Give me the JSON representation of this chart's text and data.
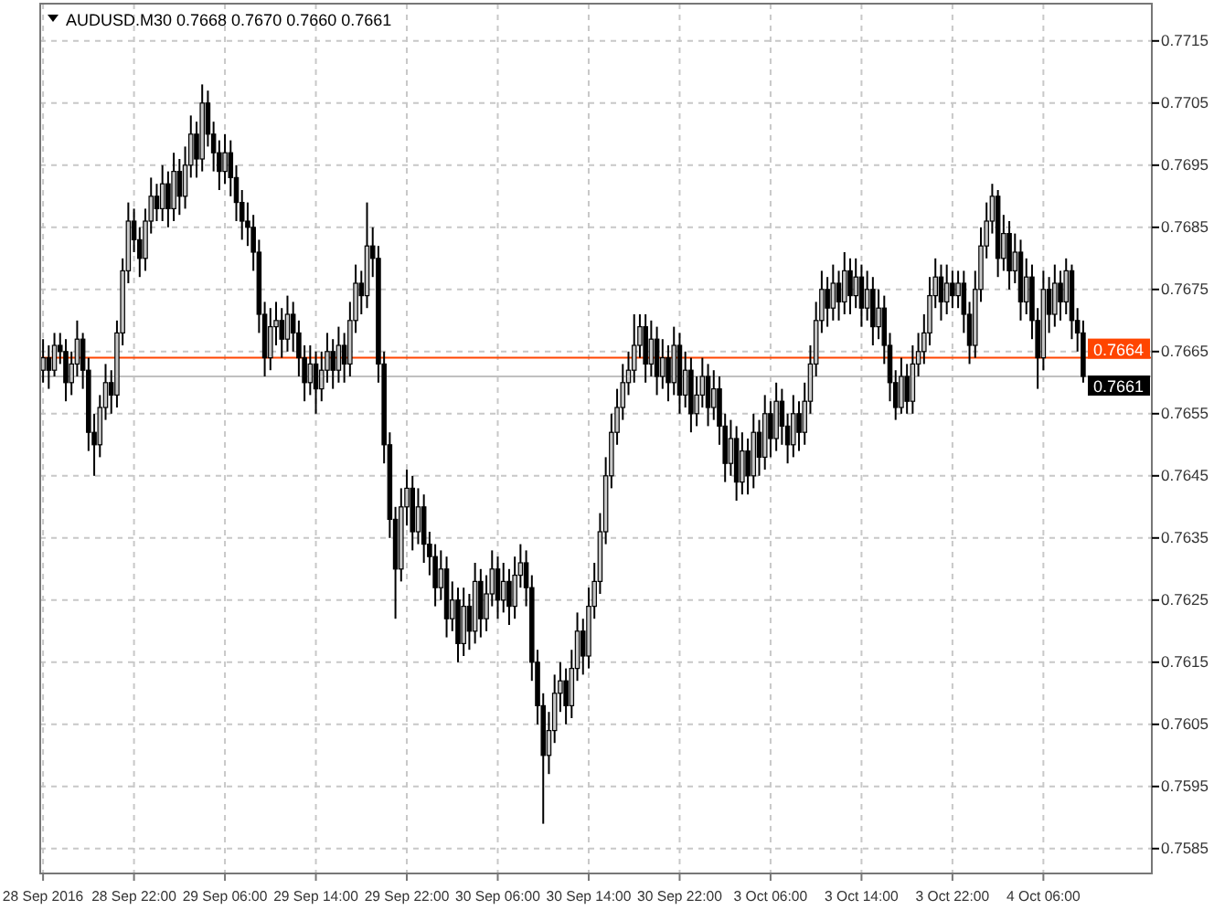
{
  "chart_data": {
    "type": "candlestick",
    "title": "AUDUSD.M30 0.7668 0.7670 0.7660 0.7661",
    "categories": [
      "28 Sep 2016",
      null,
      null,
      null,
      null,
      null,
      null,
      null,
      null,
      null,
      null,
      null,
      null,
      null,
      null,
      null,
      "28 Sep 22:00",
      null,
      null,
      null,
      null,
      null,
      null,
      null,
      null,
      null,
      null,
      null,
      null,
      null,
      null,
      null,
      "29 Sep 06:00",
      null,
      null,
      null,
      null,
      null,
      null,
      null,
      null,
      null,
      null,
      null,
      null,
      null,
      null,
      null,
      "29 Sep 14:00",
      null,
      null,
      null,
      null,
      null,
      null,
      null,
      null,
      null,
      null,
      null,
      null,
      null,
      null,
      null,
      "29 Sep 22:00",
      null,
      null,
      null,
      null,
      null,
      null,
      null,
      null,
      null,
      null,
      null,
      null,
      null,
      null,
      null,
      "30 Sep 06:00",
      null,
      null,
      null,
      null,
      null,
      null,
      null,
      null,
      null,
      null,
      null,
      null,
      null,
      null,
      null,
      "30 Sep 14:00",
      null,
      null,
      null,
      null,
      null,
      null,
      null,
      null,
      null,
      null,
      null,
      null,
      null,
      null,
      null,
      "30 Sep 22:00",
      null,
      null,
      null,
      null,
      null,
      null,
      null,
      null,
      null,
      null,
      null,
      null,
      null,
      null,
      null,
      "3 Oct 06:00",
      null,
      null,
      null,
      null,
      null,
      null,
      null,
      null,
      null,
      null,
      null,
      null,
      null,
      null,
      null,
      "3 Oct 14:00",
      null,
      null,
      null,
      null,
      null,
      null,
      null,
      null,
      null,
      null,
      null,
      null,
      null,
      null,
      null,
      "3 Oct 22:00",
      null,
      null,
      null,
      null,
      null,
      null,
      null,
      null,
      null,
      null,
      null,
      null,
      null,
      null,
      null,
      "4 Oct 06:00",
      null,
      null,
      null,
      null,
      null,
      null,
      null
    ],
    "ohlc": [
      [
        0.7662,
        0.7667,
        0.766,
        0.7664
      ],
      [
        0.7664,
        0.7666,
        0.7659,
        0.7662
      ],
      [
        0.7662,
        0.7668,
        0.7661,
        0.7666
      ],
      [
        0.7666,
        0.7668,
        0.7663,
        0.7665
      ],
      [
        0.7665,
        0.7667,
        0.7657,
        0.766
      ],
      [
        0.766,
        0.7665,
        0.7658,
        0.7663
      ],
      [
        0.7663,
        0.767,
        0.7661,
        0.7667
      ],
      [
        0.7667,
        0.7668,
        0.7659,
        0.7662
      ],
      [
        0.7662,
        0.7664,
        0.7649,
        0.7652
      ],
      [
        0.7652,
        0.7655,
        0.7645,
        0.765
      ],
      [
        0.765,
        0.7658,
        0.7648,
        0.7656
      ],
      [
        0.7656,
        0.7663,
        0.7654,
        0.766
      ],
      [
        0.766,
        0.7662,
        0.7655,
        0.7658
      ],
      [
        0.7658,
        0.767,
        0.7656,
        0.7668
      ],
      [
        0.7668,
        0.768,
        0.7666,
        0.7678
      ],
      [
        0.7678,
        0.7689,
        0.7676,
        0.7686
      ],
      [
        0.7686,
        0.7688,
        0.7681,
        0.7683
      ],
      [
        0.7683,
        0.7685,
        0.7677,
        0.768
      ],
      [
        0.768,
        0.7688,
        0.7678,
        0.7686
      ],
      [
        0.7686,
        0.7693,
        0.7684,
        0.769
      ],
      [
        0.769,
        0.7692,
        0.7686,
        0.7688
      ],
      [
        0.7688,
        0.7695,
        0.7686,
        0.7692
      ],
      [
        0.7692,
        0.7694,
        0.7685,
        0.7688
      ],
      [
        0.7688,
        0.7697,
        0.7686,
        0.7694
      ],
      [
        0.7694,
        0.7696,
        0.7687,
        0.769
      ],
      [
        0.769,
        0.7698,
        0.7688,
        0.7695
      ],
      [
        0.7695,
        0.7703,
        0.7693,
        0.77
      ],
      [
        0.77,
        0.7702,
        0.7693,
        0.7696
      ],
      [
        0.7696,
        0.7708,
        0.7694,
        0.7705
      ],
      [
        0.7705,
        0.7707,
        0.7698,
        0.77
      ],
      [
        0.77,
        0.7702,
        0.7694,
        0.7697
      ],
      [
        0.7697,
        0.7699,
        0.7691,
        0.7694
      ],
      [
        0.7694,
        0.77,
        0.7692,
        0.7697
      ],
      [
        0.7697,
        0.7699,
        0.769,
        0.7693
      ],
      [
        0.7693,
        0.7695,
        0.7686,
        0.7689
      ],
      [
        0.7689,
        0.7691,
        0.7683,
        0.7686
      ],
      [
        0.7686,
        0.7689,
        0.7682,
        0.7685
      ],
      [
        0.7685,
        0.7687,
        0.7678,
        0.7681
      ],
      [
        0.7681,
        0.7683,
        0.7668,
        0.7671
      ],
      [
        0.7671,
        0.7673,
        0.7661,
        0.7664
      ],
      [
        0.7664,
        0.7672,
        0.7662,
        0.7669
      ],
      [
        0.7669,
        0.7673,
        0.7666,
        0.767
      ],
      [
        0.767,
        0.7672,
        0.7664,
        0.7667
      ],
      [
        0.7667,
        0.7674,
        0.7665,
        0.7671
      ],
      [
        0.7671,
        0.7673,
        0.7665,
        0.7668
      ],
      [
        0.7668,
        0.767,
        0.7661,
        0.7664
      ],
      [
        0.7664,
        0.7666,
        0.7657,
        0.766
      ],
      [
        0.766,
        0.7666,
        0.7658,
        0.7663
      ],
      [
        0.7663,
        0.7665,
        0.7655,
        0.7659
      ],
      [
        0.7659,
        0.7665,
        0.7657,
        0.7662
      ],
      [
        0.7662,
        0.7668,
        0.766,
        0.7665
      ],
      [
        0.7665,
        0.7667,
        0.7659,
        0.7662
      ],
      [
        0.7662,
        0.7669,
        0.766,
        0.7666
      ],
      [
        0.7666,
        0.7668,
        0.766,
        0.7663
      ],
      [
        0.7663,
        0.7673,
        0.7661,
        0.767
      ],
      [
        0.767,
        0.7679,
        0.7668,
        0.7676
      ],
      [
        0.7676,
        0.7678,
        0.7671,
        0.7674
      ],
      [
        0.7674,
        0.7689,
        0.7672,
        0.7682
      ],
      [
        0.7682,
        0.7685,
        0.7677,
        0.768
      ],
      [
        0.768,
        0.7682,
        0.766,
        0.7663
      ],
      [
        0.7663,
        0.7665,
        0.7647,
        0.765
      ],
      [
        0.765,
        0.7652,
        0.7635,
        0.7638
      ],
      [
        0.7638,
        0.764,
        0.7622,
        0.763
      ],
      [
        0.763,
        0.7643,
        0.7628,
        0.764
      ],
      [
        0.764,
        0.7646,
        0.7637,
        0.7643
      ],
      [
        0.7643,
        0.7645,
        0.7633,
        0.7636
      ],
      [
        0.7636,
        0.7643,
        0.7634,
        0.764
      ],
      [
        0.764,
        0.7642,
        0.7631,
        0.7634
      ],
      [
        0.7634,
        0.7636,
        0.7629,
        0.7632
      ],
      [
        0.7632,
        0.7634,
        0.7624,
        0.7627
      ],
      [
        0.7627,
        0.7633,
        0.7625,
        0.763
      ],
      [
        0.763,
        0.7632,
        0.7619,
        0.7622
      ],
      [
        0.7622,
        0.7628,
        0.762,
        0.7625
      ],
      [
        0.7625,
        0.7627,
        0.7615,
        0.7618
      ],
      [
        0.7618,
        0.7627,
        0.7616,
        0.7624
      ],
      [
        0.7624,
        0.7626,
        0.7617,
        0.762
      ],
      [
        0.762,
        0.7631,
        0.7618,
        0.7628
      ],
      [
        0.7628,
        0.763,
        0.7619,
        0.7622
      ],
      [
        0.7622,
        0.7629,
        0.762,
        0.7626
      ],
      [
        0.7626,
        0.7633,
        0.7624,
        0.763
      ],
      [
        0.763,
        0.7632,
        0.7622,
        0.7625
      ],
      [
        0.7625,
        0.7631,
        0.7623,
        0.7628
      ],
      [
        0.7628,
        0.763,
        0.7621,
        0.7624
      ],
      [
        0.7624,
        0.7632,
        0.7622,
        0.7629
      ],
      [
        0.7629,
        0.7634,
        0.7627,
        0.7631
      ],
      [
        0.7631,
        0.7633,
        0.7624,
        0.7627
      ],
      [
        0.7627,
        0.7629,
        0.7612,
        0.7615
      ],
      [
        0.7615,
        0.7617,
        0.7605,
        0.7608
      ],
      [
        0.7608,
        0.761,
        0.7589,
        0.76
      ],
      [
        0.76,
        0.7607,
        0.7597,
        0.7604
      ],
      [
        0.7604,
        0.7613,
        0.7602,
        0.761
      ],
      [
        0.761,
        0.7615,
        0.7607,
        0.7612
      ],
      [
        0.7612,
        0.7614,
        0.7605,
        0.7608
      ],
      [
        0.7608,
        0.7617,
        0.7606,
        0.7614
      ],
      [
        0.7614,
        0.7623,
        0.7612,
        0.762
      ],
      [
        0.762,
        0.7622,
        0.7613,
        0.7616
      ],
      [
        0.7616,
        0.7627,
        0.7614,
        0.7624
      ],
      [
        0.7624,
        0.7631,
        0.7622,
        0.7628
      ],
      [
        0.7628,
        0.7639,
        0.7626,
        0.7636
      ],
      [
        0.7636,
        0.7648,
        0.7634,
        0.7645
      ],
      [
        0.7645,
        0.7655,
        0.7643,
        0.7652
      ],
      [
        0.7652,
        0.7659,
        0.765,
        0.7656
      ],
      [
        0.7656,
        0.7663,
        0.7654,
        0.766
      ],
      [
        0.766,
        0.7665,
        0.7658,
        0.7662
      ],
      [
        0.7662,
        0.7671,
        0.766,
        0.7666
      ],
      [
        0.7666,
        0.7671,
        0.7664,
        0.7669
      ],
      [
        0.7669,
        0.7671,
        0.766,
        0.7663
      ],
      [
        0.7663,
        0.767,
        0.7661,
        0.7667
      ],
      [
        0.7667,
        0.7669,
        0.7658,
        0.7661
      ],
      [
        0.7661,
        0.7667,
        0.7659,
        0.7664
      ],
      [
        0.7664,
        0.7666,
        0.7657,
        0.766
      ],
      [
        0.766,
        0.7669,
        0.7658,
        0.7666
      ],
      [
        0.7666,
        0.7668,
        0.7655,
        0.7658
      ],
      [
        0.7658,
        0.7665,
        0.7656,
        0.7662
      ],
      [
        0.7662,
        0.7664,
        0.7652,
        0.7655
      ],
      [
        0.7655,
        0.7661,
        0.7653,
        0.7658
      ],
      [
        0.7658,
        0.7664,
        0.7656,
        0.7661
      ],
      [
        0.7661,
        0.7663,
        0.7653,
        0.7656
      ],
      [
        0.7656,
        0.7662,
        0.7654,
        0.7659
      ],
      [
        0.7659,
        0.7661,
        0.765,
        0.7653
      ],
      [
        0.7653,
        0.7655,
        0.7644,
        0.7647
      ],
      [
        0.7647,
        0.7654,
        0.7645,
        0.7651
      ],
      [
        0.7651,
        0.7653,
        0.7641,
        0.7644
      ],
      [
        0.7644,
        0.7652,
        0.7642,
        0.7649
      ],
      [
        0.7649,
        0.7651,
        0.7642,
        0.7645
      ],
      [
        0.7645,
        0.7655,
        0.7643,
        0.7652
      ],
      [
        0.7652,
        0.7654,
        0.7645,
        0.7648
      ],
      [
        0.7648,
        0.7658,
        0.7646,
        0.7655
      ],
      [
        0.7655,
        0.7657,
        0.7648,
        0.7651
      ],
      [
        0.7651,
        0.766,
        0.7649,
        0.7657
      ],
      [
        0.7657,
        0.7659,
        0.765,
        0.7653
      ],
      [
        0.7653,
        0.7655,
        0.7647,
        0.765
      ],
      [
        0.765,
        0.7658,
        0.7648,
        0.7655
      ],
      [
        0.7655,
        0.7657,
        0.7649,
        0.7652
      ],
      [
        0.7652,
        0.766,
        0.765,
        0.7657
      ],
      [
        0.7657,
        0.7666,
        0.7655,
        0.7663
      ],
      [
        0.7663,
        0.7673,
        0.7661,
        0.767
      ],
      [
        0.767,
        0.7678,
        0.7668,
        0.7675
      ],
      [
        0.7675,
        0.7677,
        0.7669,
        0.7672
      ],
      [
        0.7672,
        0.7679,
        0.767,
        0.7676
      ],
      [
        0.7676,
        0.7678,
        0.767,
        0.7673
      ],
      [
        0.7673,
        0.7681,
        0.7671,
        0.7678
      ],
      [
        0.7678,
        0.768,
        0.7671,
        0.7674
      ],
      [
        0.7674,
        0.768,
        0.7672,
        0.7677
      ],
      [
        0.7677,
        0.7679,
        0.7669,
        0.7672
      ],
      [
        0.7672,
        0.7678,
        0.767,
        0.7675
      ],
      [
        0.7675,
        0.7677,
        0.7666,
        0.7669
      ],
      [
        0.7669,
        0.7675,
        0.7667,
        0.7672
      ],
      [
        0.7672,
        0.7674,
        0.7663,
        0.7666
      ],
      [
        0.7666,
        0.7668,
        0.7657,
        0.766
      ],
      [
        0.766,
        0.7662,
        0.7654,
        0.7656
      ],
      [
        0.7656,
        0.7664,
        0.7655,
        0.7661
      ],
      [
        0.7661,
        0.7663,
        0.7655,
        0.7657
      ],
      [
        0.7657,
        0.7666,
        0.7655,
        0.7663
      ],
      [
        0.7663,
        0.7668,
        0.7661,
        0.7665
      ],
      [
        0.7665,
        0.7671,
        0.7663,
        0.7668
      ],
      [
        0.7668,
        0.7677,
        0.7666,
        0.7674
      ],
      [
        0.7674,
        0.768,
        0.7672,
        0.7677
      ],
      [
        0.7677,
        0.7679,
        0.767,
        0.7673
      ],
      [
        0.7673,
        0.7679,
        0.7671,
        0.7676
      ],
      [
        0.7676,
        0.7678,
        0.7672,
        0.7674
      ],
      [
        0.7674,
        0.7678,
        0.7672,
        0.7676
      ],
      [
        0.7676,
        0.7678,
        0.7668,
        0.7671
      ],
      [
        0.7671,
        0.7673,
        0.7663,
        0.7666
      ],
      [
        0.7666,
        0.7678,
        0.7664,
        0.7675
      ],
      [
        0.7675,
        0.7685,
        0.7673,
        0.7682
      ],
      [
        0.7682,
        0.7689,
        0.768,
        0.7686
      ],
      [
        0.7686,
        0.7692,
        0.7684,
        0.769
      ],
      [
        0.769,
        0.7691,
        0.7677,
        0.768
      ],
      [
        0.768,
        0.7687,
        0.7678,
        0.7684
      ],
      [
        0.7684,
        0.7686,
        0.7675,
        0.7678
      ],
      [
        0.7678,
        0.7684,
        0.7676,
        0.7681
      ],
      [
        0.7681,
        0.7683,
        0.767,
        0.7673
      ],
      [
        0.7673,
        0.768,
        0.7671,
        0.7677
      ],
      [
        0.7677,
        0.7679,
        0.7667,
        0.767
      ],
      [
        0.767,
        0.7672,
        0.7659,
        0.7664
      ],
      [
        0.7664,
        0.7678,
        0.7662,
        0.7675
      ],
      [
        0.7675,
        0.7677,
        0.7668,
        0.7671
      ],
      [
        0.7671,
        0.7679,
        0.7669,
        0.7676
      ],
      [
        0.7676,
        0.7678,
        0.767,
        0.7673
      ],
      [
        0.7673,
        0.768,
        0.7671,
        0.7678
      ],
      [
        0.7678,
        0.7679,
        0.7667,
        0.767
      ],
      [
        0.767,
        0.7672,
        0.7665,
        0.7668
      ],
      [
        0.7668,
        0.767,
        0.766,
        0.7661
      ]
    ],
    "ylim": [
      0.7581,
      0.7721
    ],
    "yticks": [
      0.7585,
      0.7595,
      0.7605,
      0.7615,
      0.7625,
      0.7635,
      0.7645,
      0.7655,
      0.7665,
      0.7675,
      0.7685,
      0.7695,
      0.7705,
      0.7715
    ],
    "ref_lines": [
      {
        "axis": "y",
        "value": 0.7664,
        "label": "0.7664",
        "color": "#ff4500"
      },
      {
        "axis": "y",
        "value": 0.7661,
        "label": "0.7661",
        "color": "#c0c0c0"
      }
    ],
    "grid": true
  }
}
